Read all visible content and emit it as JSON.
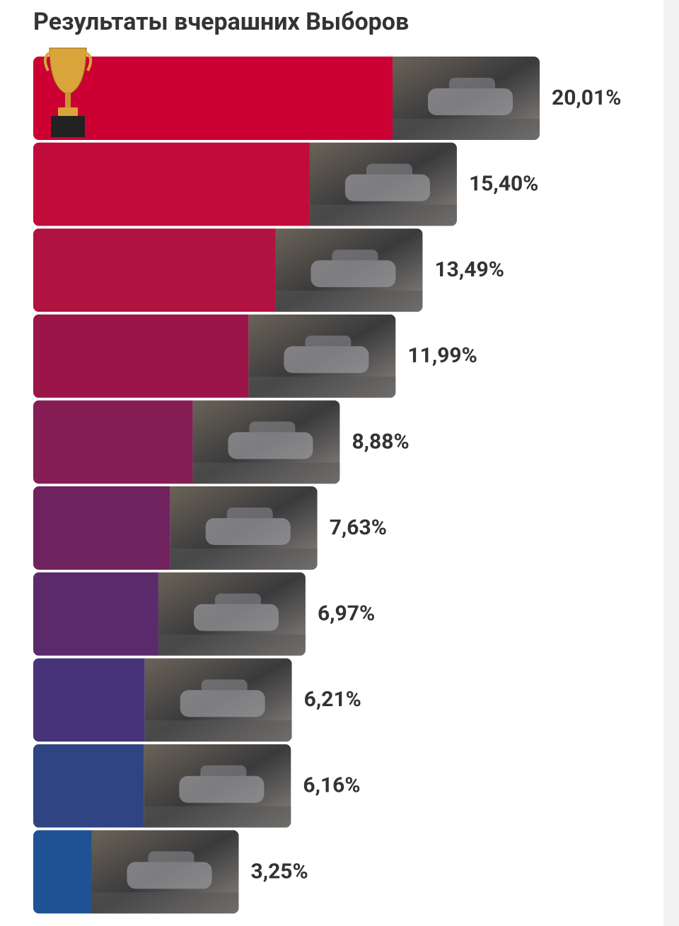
{
  "chart_data": {
    "type": "bar",
    "orientation": "horizontal",
    "title": "Результаты вчерашних Выборов",
    "values": [
      20.01,
      15.4,
      13.49,
      11.99,
      8.88,
      7.63,
      6.97,
      6.21,
      6.16,
      3.25
    ],
    "value_labels": [
      "20,01%",
      "15,40%",
      "13,49%",
      "11,99%",
      "8,88%",
      "7,63%",
      "6,97%",
      "6,21%",
      "6,16%",
      "3,25%"
    ],
    "colors": [
      "#cc0033",
      "#c10c3b",
      "#b1123f",
      "#9b1548",
      "#861e55",
      "#70225f",
      "#5b2a6b",
      "#473478",
      "#304484",
      "#1f5295"
    ]
  }
}
